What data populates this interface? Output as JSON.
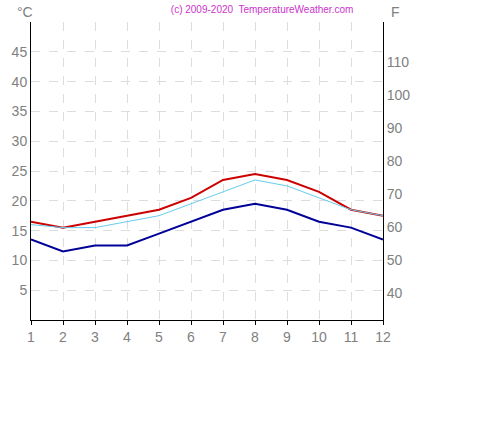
{
  "chart_data": {
    "type": "line",
    "title": "(c) 2009-2020  TemperatureWeather.com",
    "ylabel": "°C",
    "y2label": "F",
    "x": [
      1,
      2,
      3,
      4,
      5,
      6,
      7,
      8,
      9,
      10,
      11,
      12
    ],
    "series": [
      {
        "color": "#cc0000",
        "values": [
          16.5,
          15.5,
          16.5,
          17.5,
          18.5,
          20.5,
          23.5,
          24.5,
          23.5,
          21.5,
          18.5,
          17.5
        ]
      },
      {
        "color": "#66ccee",
        "values": [
          16,
          15.5,
          15.5,
          16.5,
          17.5,
          19.5,
          21.5,
          23.5,
          22.5,
          20.5,
          18.5,
          17.5
        ]
      },
      {
        "color": "#000099",
        "values": [
          13.5,
          11.5,
          12.5,
          12.5,
          14.5,
          16.5,
          18.5,
          19.5,
          18.5,
          16.5,
          15.5,
          13.5
        ]
      }
    ],
    "xlim": [
      1,
      12
    ],
    "xticks": [
      1,
      2,
      3,
      4,
      5,
      6,
      7,
      8,
      9,
      10,
      11,
      12
    ],
    "ylim": [
      0,
      50
    ],
    "yticks": [
      5,
      10,
      15,
      20,
      25,
      30,
      35,
      40,
      45
    ],
    "y2lim": [
      32,
      122
    ],
    "y2ticks": [
      40,
      50,
      60,
      70,
      80,
      90,
      100,
      110
    ],
    "grid": true
  }
}
